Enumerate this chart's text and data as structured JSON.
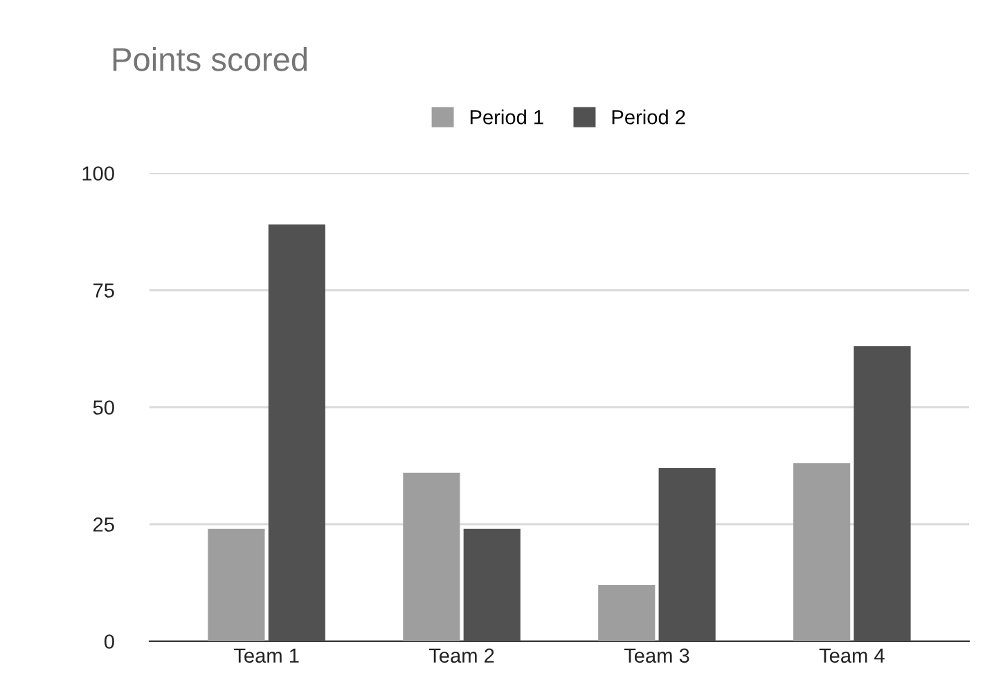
{
  "chart_data": {
    "type": "bar",
    "title": "Points scored",
    "categories": [
      "Team 1",
      "Team 2",
      "Team 3",
      "Team 4"
    ],
    "series": [
      {
        "name": "Period 1",
        "color": "#9e9e9e",
        "values": [
          24,
          36,
          12,
          38
        ]
      },
      {
        "name": "Period 2",
        "color": "#515151",
        "values": [
          89,
          24,
          37,
          63
        ]
      }
    ],
    "ylim": [
      0,
      100
    ],
    "yticks": [
      0,
      25,
      50,
      75,
      100
    ],
    "grid": "y",
    "legend": "top"
  }
}
